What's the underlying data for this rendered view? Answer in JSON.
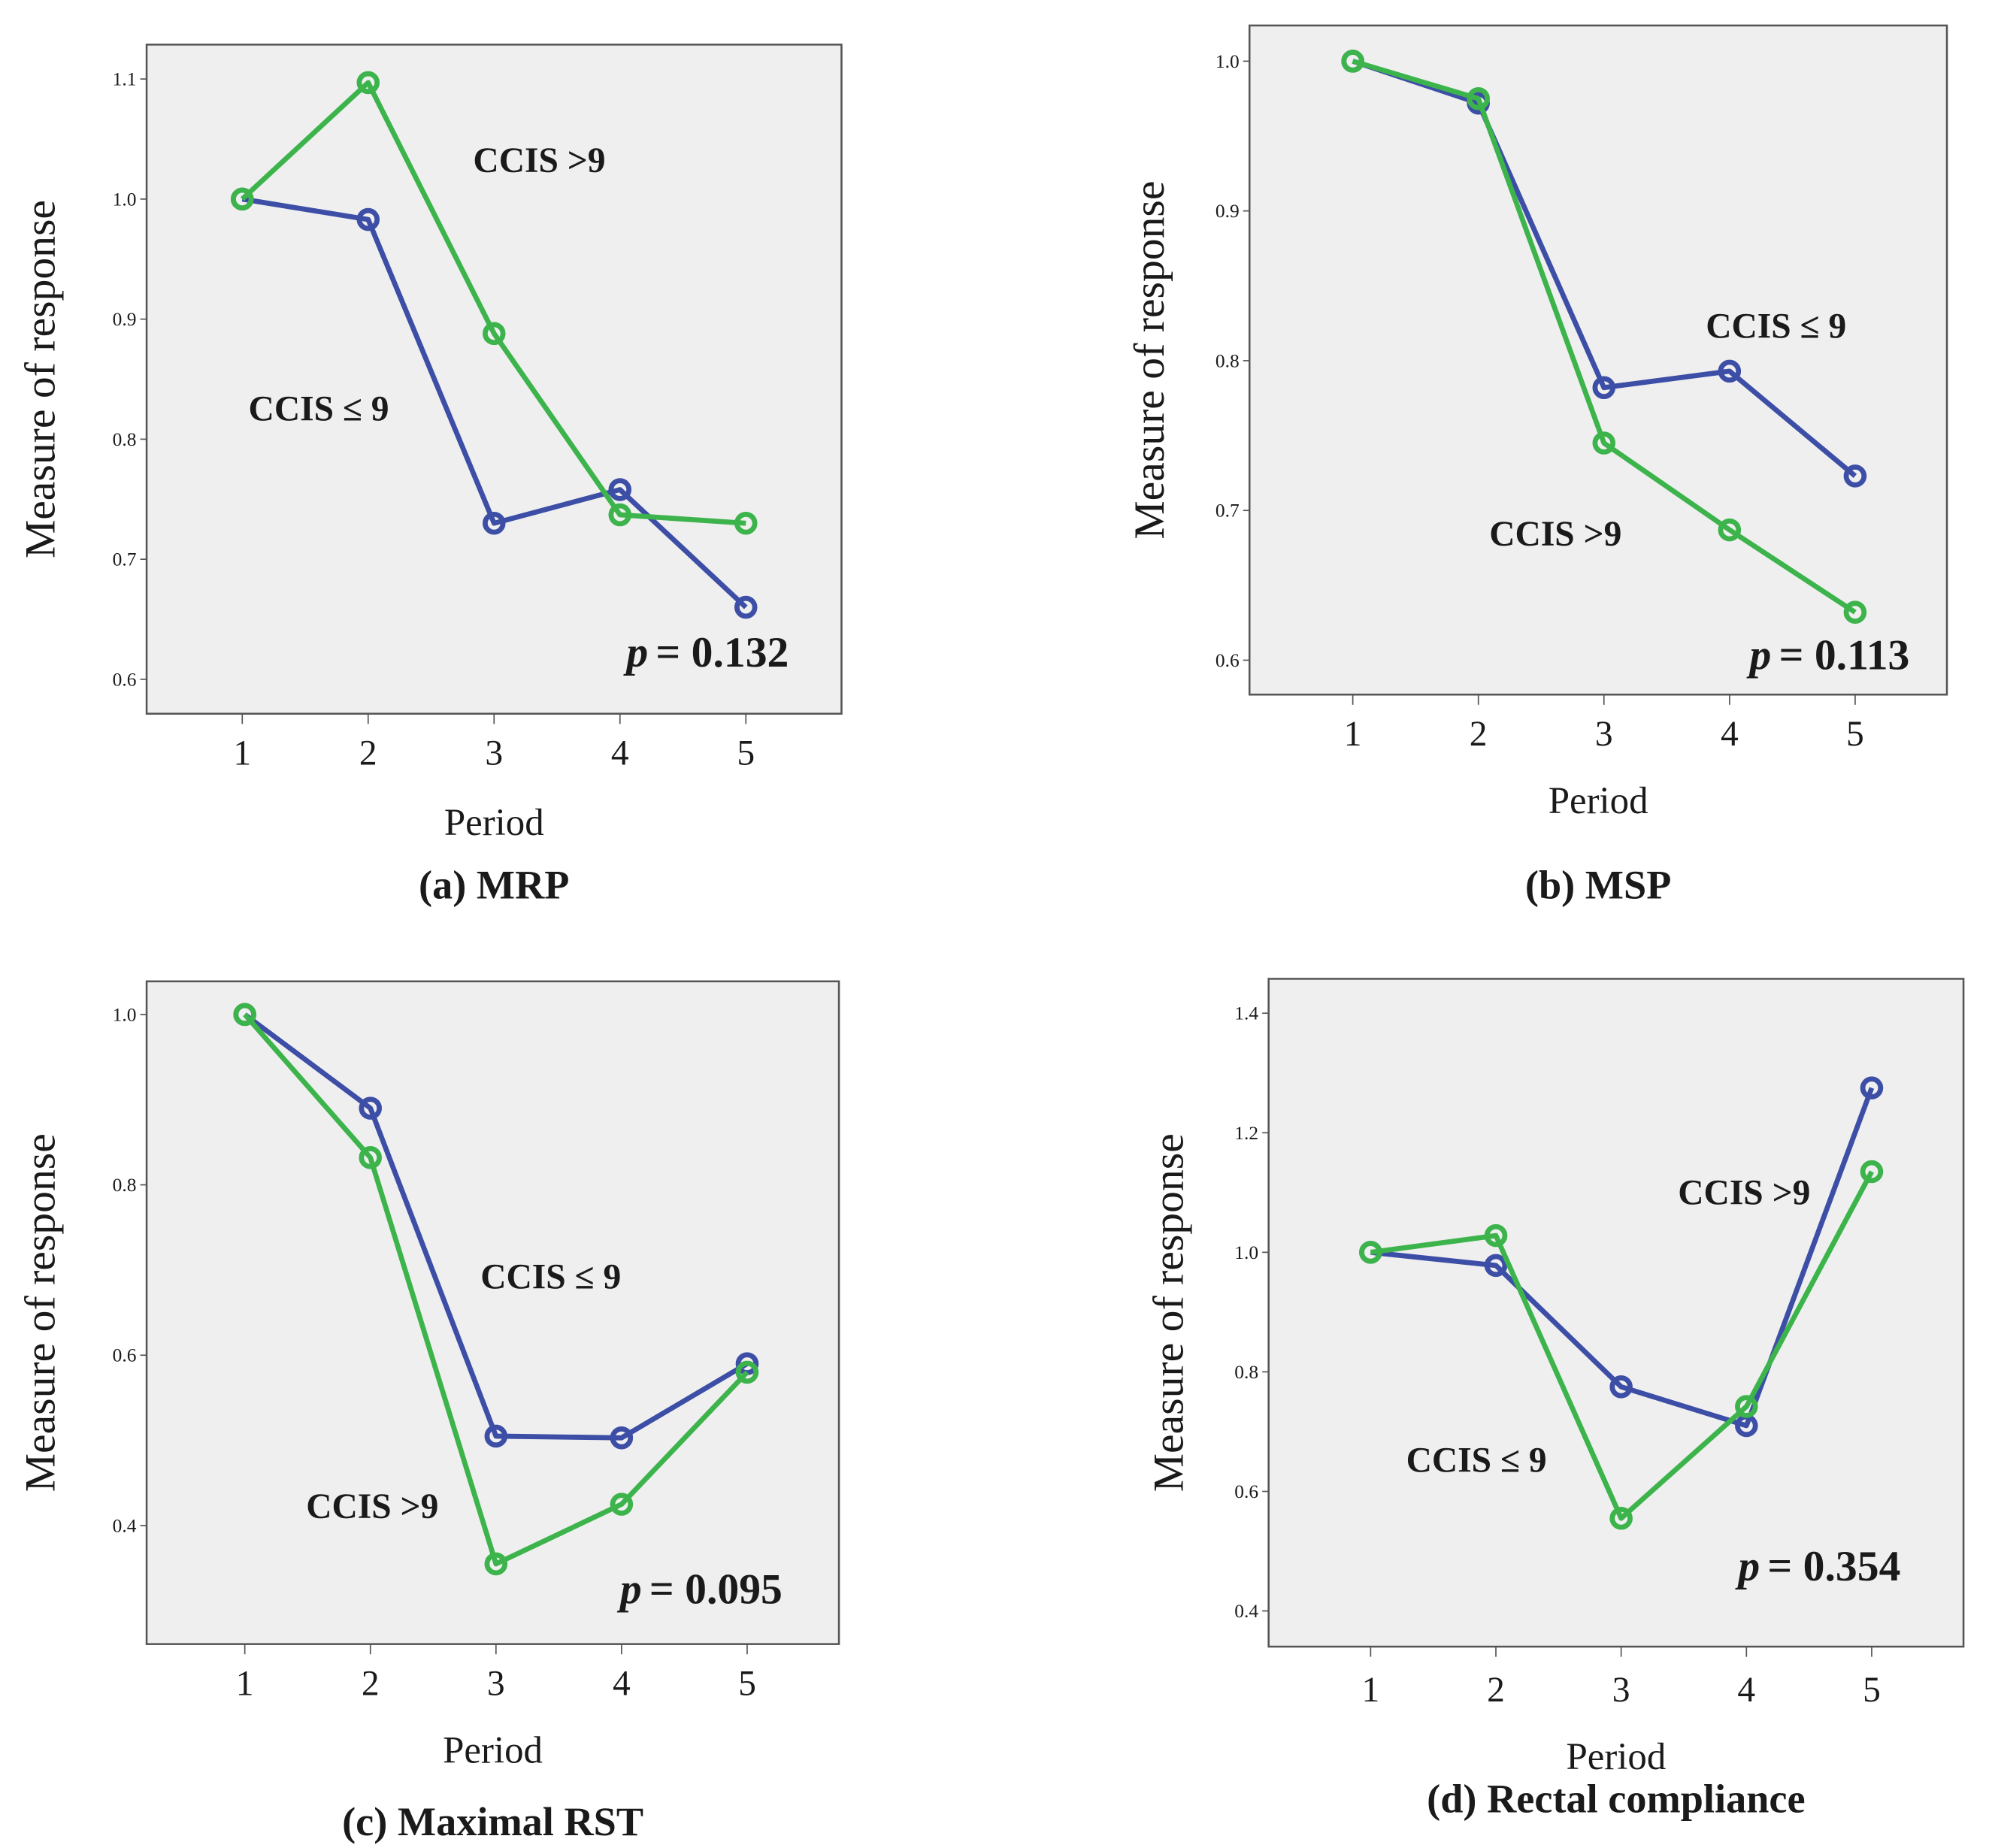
{
  "colors": {
    "ccis_le_9": "#3d4ea6",
    "ccis_gt_9": "#3cb44b",
    "plot_bg": "#efefef"
  },
  "chart_data": [
    {
      "type": "line",
      "panel": "a",
      "title": "(a) MRP",
      "xlabel": "Period",
      "ylabel": "Measure of response",
      "x": [
        1,
        2,
        3,
        4,
        5
      ],
      "xticks": [
        "1",
        "2",
        "3",
        "4",
        "5"
      ],
      "ylim": [
        0.58,
        1.12
      ],
      "yticks": [
        "0.6",
        "0.7",
        "0.8",
        "0.9",
        "1.0",
        "1.1"
      ],
      "series": [
        {
          "name": "CCIS ≤ 9",
          "values": [
            1.0,
            0.983,
            0.73,
            0.758,
            0.66
          ]
        },
        {
          "name": "CCIS >9",
          "values": [
            1.0,
            1.097,
            0.888,
            0.737,
            0.73
          ]
        }
      ],
      "annotations": [
        "CCIS >9",
        "CCIS ≤ 9"
      ],
      "p_label": "p",
      "p_value": "= 0.132"
    },
    {
      "type": "line",
      "panel": "b",
      "title": "(b) MSP",
      "xlabel": "Period",
      "ylabel": "Measure of response",
      "x": [
        1,
        2,
        3,
        4,
        5
      ],
      "xticks": [
        "1",
        "2",
        "3",
        "4",
        "5"
      ],
      "ylim": [
        0.58,
        1.02
      ],
      "yticks": [
        "0.6",
        "0.7",
        "0.8",
        "0.9",
        "1.0"
      ],
      "series": [
        {
          "name": "CCIS ≤ 9",
          "values": [
            1.0,
            0.972,
            0.782,
            0.793,
            0.723
          ]
        },
        {
          "name": "CCIS >9",
          "values": [
            1.0,
            0.975,
            0.745,
            0.687,
            0.632
          ]
        }
      ],
      "annotations": [
        "CCIS ≤ 9",
        "CCIS >9"
      ],
      "p_label": "p",
      "p_value": "= 0.113"
    },
    {
      "type": "line",
      "panel": "c",
      "title": "(c) Maximal RST",
      "xlabel": "Period",
      "ylabel": "Measure of response",
      "x": [
        1,
        2,
        3,
        4,
        5
      ],
      "xticks": [
        "1",
        "2",
        "3",
        "4",
        "5"
      ],
      "ylim": [
        0.26,
        1.04
      ],
      "yticks": [
        "0.4",
        "0.6",
        "0.8",
        "1.0"
      ],
      "series": [
        {
          "name": "CCIS ≤ 9",
          "values": [
            1.0,
            0.89,
            0.505,
            0.503,
            0.59
          ]
        },
        {
          "name": "CCIS >9",
          "values": [
            1.0,
            0.832,
            0.355,
            0.425,
            0.58
          ]
        }
      ],
      "annotations": [
        "CCIS ≤ 9",
        "CCIS >9"
      ],
      "p_label": "p",
      "p_value": "= 0.095"
    },
    {
      "type": "line",
      "panel": "d",
      "title": "(d) Rectal compliance",
      "xlabel": "Period",
      "ylabel": "Measure of response",
      "x": [
        1,
        2,
        3,
        4,
        5
      ],
      "xticks": [
        "1",
        "2",
        "3",
        "4",
        "5"
      ],
      "ylim": [
        0.35,
        1.455
      ],
      "yticks": [
        "0.4",
        "0.6",
        "0.8",
        "1.0",
        "1.2",
        "1.4"
      ],
      "series": [
        {
          "name": "CCIS ≤ 9",
          "values": [
            1.0,
            0.978,
            0.775,
            0.71,
            1.275
          ]
        },
        {
          "name": "CCIS >9",
          "values": [
            1.0,
            1.028,
            0.555,
            0.742,
            1.135
          ]
        }
      ],
      "annotations": [
        "CCIS >9",
        "CCIS ≤ 9"
      ],
      "p_label": "p",
      "p_value": "= 0.354"
    }
  ]
}
